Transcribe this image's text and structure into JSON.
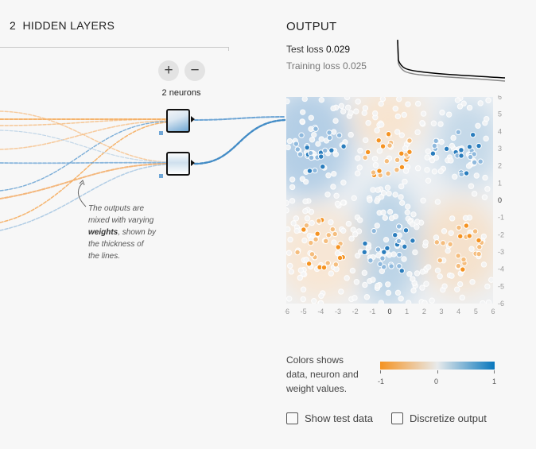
{
  "hidden_layers": {
    "count": "2",
    "title": "HIDDEN LAYERS",
    "add_icon": "+",
    "remove_icon": "−",
    "neuron_count_label": "2 neurons",
    "callout": {
      "line1": "The outputs are",
      "line2": "mixed with varying",
      "bold": "weights",
      "line3_rest": ", shown by",
      "line4": "the thickness of",
      "line5": "the lines."
    }
  },
  "output": {
    "title": "OUTPUT",
    "test_loss_label": "Test loss",
    "test_loss_value": "0.029",
    "training_loss_label": "Training loss",
    "training_loss_value": "0.025",
    "axis_ticks": [
      "-6",
      "-5",
      "-4",
      "-3",
      "-2",
      "-1",
      "0",
      "1",
      "2",
      "3",
      "4",
      "5",
      "6"
    ]
  },
  "legend": {
    "text_line1": "Colors shows",
    "text_line2": "data, neuron and",
    "text_line3": "weight values.",
    "min_label": "-1",
    "mid_label": "0",
    "max_label": "1",
    "orange": "#f59322",
    "blue": "#0877bd",
    "neutral": "#e8eaeb"
  },
  "checkboxes": {
    "show_test_data": {
      "label": "Show test data",
      "checked": false
    },
    "discretize_output": {
      "label": "Discretize output",
      "checked": false
    }
  }
}
